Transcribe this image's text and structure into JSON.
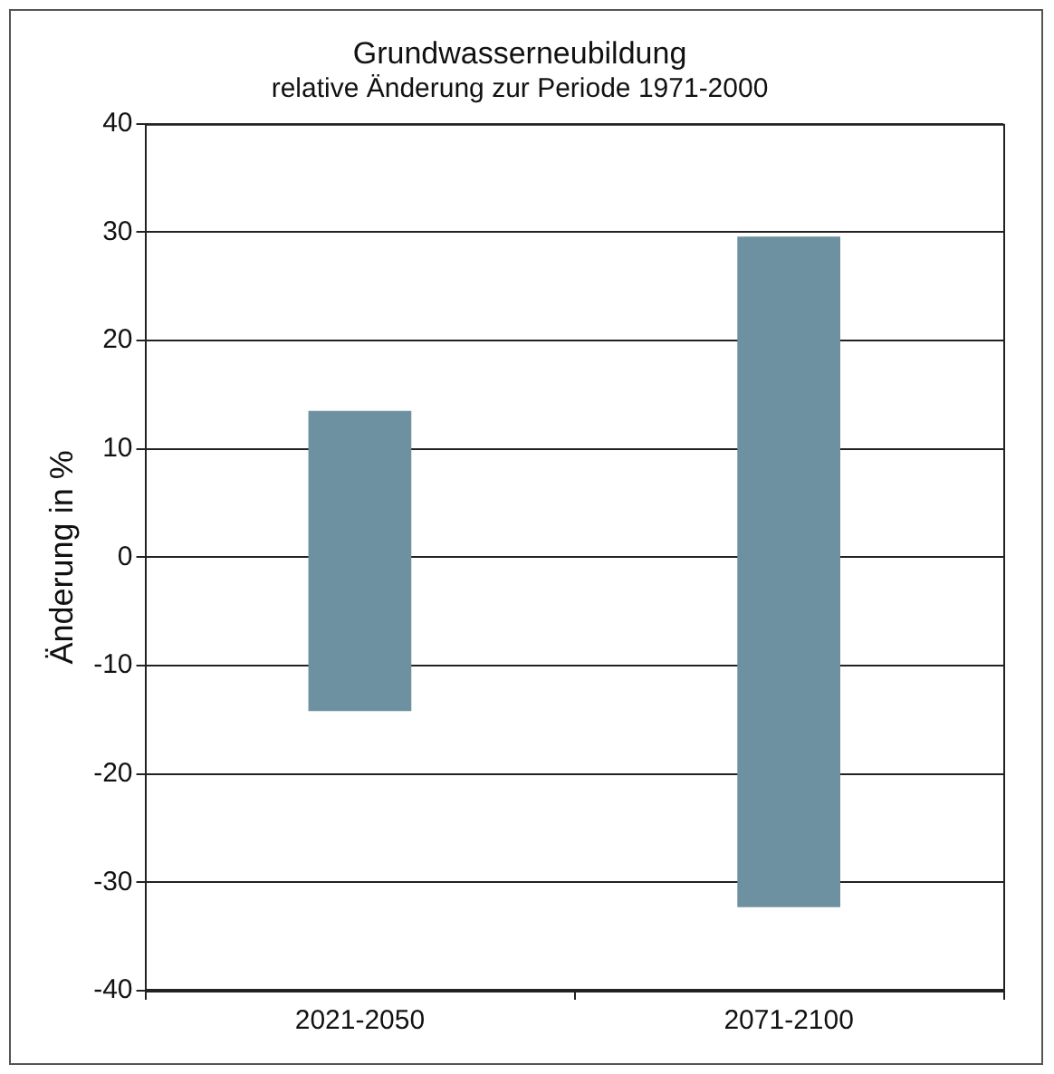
{
  "chart_data": {
    "type": "bar",
    "title": "Grundwasserneubildung",
    "subtitle": "relative Änderung zur Periode 1971-2000",
    "ylabel": "Änderung in %",
    "categories": [
      "2021-2050",
      "2071-2100"
    ],
    "base": [
      -14.2,
      -32.3
    ],
    "values": [
      27.7,
      61.9
    ],
    "color": "#6e91a1",
    "ylim": [
      -40,
      40
    ],
    "yticks": [
      -40,
      -30,
      -20,
      -10,
      0,
      10,
      20,
      30,
      40
    ],
    "grid": "y",
    "legend": false
  }
}
